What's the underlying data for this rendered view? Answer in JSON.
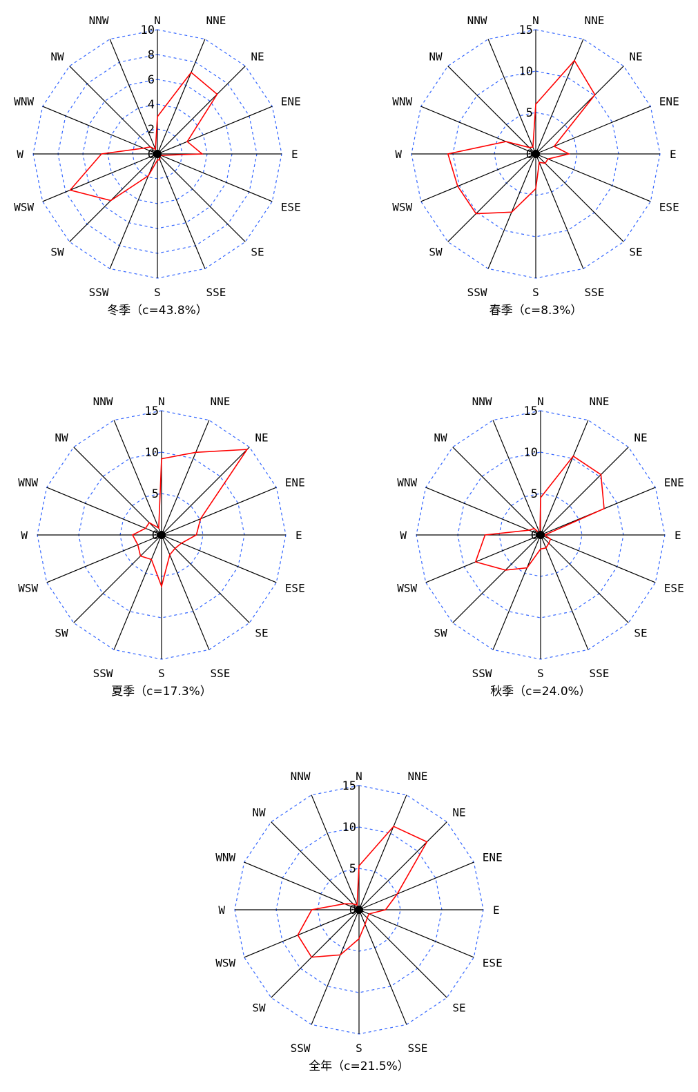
{
  "directions": [
    "N",
    "NNE",
    "NE",
    "ENE",
    "E",
    "ESE",
    "SE",
    "SSE",
    "S",
    "SSW",
    "SW",
    "WSW",
    "W",
    "WNW",
    "NW",
    "NNW"
  ],
  "colors": {
    "grid": "#3366ff",
    "axis": "#000000",
    "series": "#ff0000",
    "center": "#000000"
  },
  "chart_data": [
    {
      "type": "radar",
      "title": "冬季（c=43.8%）",
      "rmax": 10,
      "ticks": [
        "0",
        "2",
        "4",
        "6",
        "8",
        "10"
      ],
      "values": [
        3.0,
        7.1,
        6.8,
        2.6,
        3.6,
        0.3,
        0.3,
        0.5,
        0.5,
        1.9,
        5.3,
        7.6,
        4.5,
        1.2,
        0.8,
        0.4
      ]
    },
    {
      "type": "radar",
      "title": "春季（c=8.3%）",
      "rmax": 15,
      "ticks": [
        "0",
        "5",
        "10",
        "15"
      ],
      "values": [
        6.0,
        12.2,
        10.1,
        2.4,
        4.0,
        1.6,
        1.6,
        1.1,
        4.2,
        7.6,
        10.2,
        10.2,
        10.6,
        3.9,
        1.1,
        0.9
      ]
    },
    {
      "type": "radar",
      "title": "夏季（c=17.3%）",
      "rmax": 15,
      "ticks": [
        "0",
        "5",
        "10",
        "15"
      ],
      "values": [
        9.2,
        10.8,
        14.6,
        5.1,
        4.2,
        2.6,
        2.3,
        2.6,
        6.2,
        3.2,
        3.6,
        3.1,
        3.5,
        2.1,
        2.1,
        0.9
      ]
    },
    {
      "type": "radar",
      "title": "秋季（c=24.0%）",
      "rmax": 15,
      "ticks": [
        "0",
        "5",
        "10",
        "15"
      ],
      "values": [
        4.5,
        10.3,
        10.3,
        8.3,
        0.5,
        1.3,
        1.4,
        1.7,
        1.7,
        4.3,
        6.0,
        8.5,
        6.7,
        1.5,
        1.1,
        0.2
      ]
    },
    {
      "type": "radar",
      "title": "全年（c=21.5%）",
      "rmax": 15,
      "ticks": [
        "0",
        "5",
        "10",
        "15"
      ],
      "values": [
        5.3,
        10.9,
        11.6,
        5.0,
        3.2,
        1.3,
        1.4,
        1.9,
        3.5,
        5.9,
        8.1,
        8.0,
        5.7,
        1.9,
        1.0,
        0.6
      ]
    }
  ]
}
